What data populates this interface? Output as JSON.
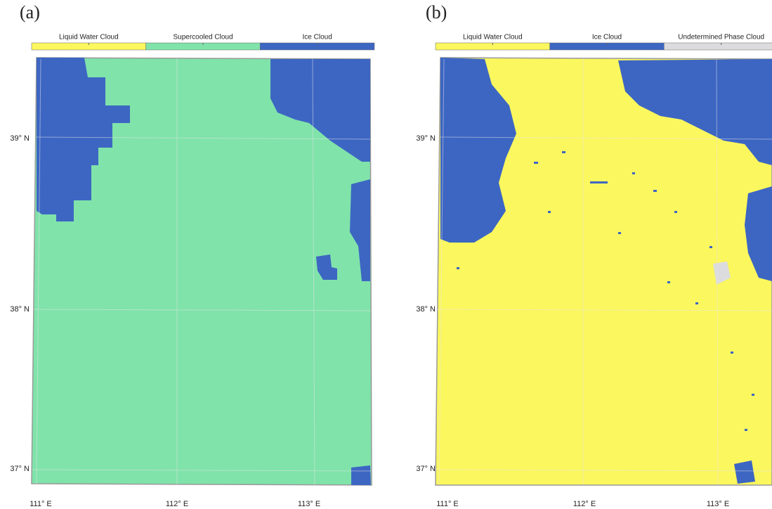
{
  "panels": [
    {
      "label": "(a)",
      "legend": [
        "Liquid Water Cloud",
        "Supercooled Cloud",
        "Ice Cloud"
      ],
      "legend_colors": [
        "#fbf75e",
        "#80e3aa",
        "#3d66c3"
      ],
      "lat_labels": [
        "39° N",
        "38° N",
        "37° N"
      ],
      "lon_labels": [
        "111° E",
        "112° E",
        "113° E"
      ]
    },
    {
      "label": "(b)",
      "legend": [
        "Liquid Water Cloud",
        "Ice Cloud",
        "Undetermined Phase Cloud"
      ],
      "legend_colors": [
        "#fbf75e",
        "#3d66c3",
        "#dcdcdf"
      ],
      "lat_labels": [
        "39° N",
        "38° N",
        "37° N"
      ],
      "lon_labels": [
        "111° E",
        "112° E",
        "113° E"
      ]
    }
  ]
}
